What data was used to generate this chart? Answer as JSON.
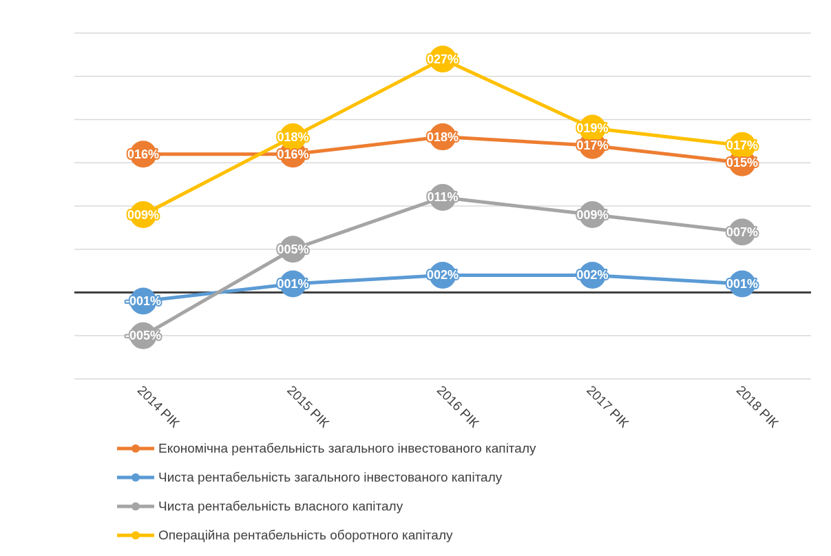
{
  "chart_data": {
    "type": "line",
    "categories": [
      "2014 РІК",
      "2015 РІК",
      "2016 РІК",
      "2017 РІК",
      "2018 РІК"
    ],
    "series": [
      {
        "name": "Економічна рентабельність загального інвестованого капіталу",
        "color": "#ed7d31",
        "values": [
          16,
          16,
          18,
          17,
          15
        ],
        "value_labels": [
          "016%",
          "016%",
          "018%",
          "017%",
          "015%"
        ]
      },
      {
        "name": "Чиста рентабельність загального інвестованого капіталу",
        "color": "#5b9bd5",
        "values": [
          -1,
          1,
          2,
          2,
          1
        ],
        "value_labels": [
          "-001%",
          "001%",
          "002%",
          "002%",
          "001%"
        ]
      },
      {
        "name": "Чиста рентабельність власного капіталу",
        "color": "#a5a5a5",
        "values": [
          -5,
          5,
          11,
          9,
          7
        ],
        "value_labels": [
          "-005%",
          "005%",
          "011%",
          "009%",
          "007%"
        ]
      },
      {
        "name": "Операційна рентабельність оборотного капіталу",
        "color": "#ffc000",
        "values": [
          9,
          18,
          27,
          19,
          17
        ],
        "value_labels": [
          "009%",
          "018%",
          "027%",
          "019%",
          "017%"
        ]
      }
    ],
    "ylim": [
      -10,
      30
    ],
    "yticks": [
      {
        "value": -10,
        "label": null
      },
      {
        "value": -5,
        "label": null
      },
      {
        "value": 0,
        "label": null
      },
      {
        "value": 5,
        "label": null
      },
      {
        "value": 10,
        "label": null
      },
      {
        "value": 15,
        "label": null
      },
      {
        "value": 20,
        "label": null
      },
      {
        "value": 25,
        "label": null
      },
      {
        "value": 30,
        "label": null
      }
    ],
    "ref_lines": [
      {
        "axis": "y",
        "value": 0,
        "color": "#404040"
      }
    ],
    "grid": "y",
    "legend": "bottom",
    "marker": "circle",
    "tick_labels": "x"
  }
}
